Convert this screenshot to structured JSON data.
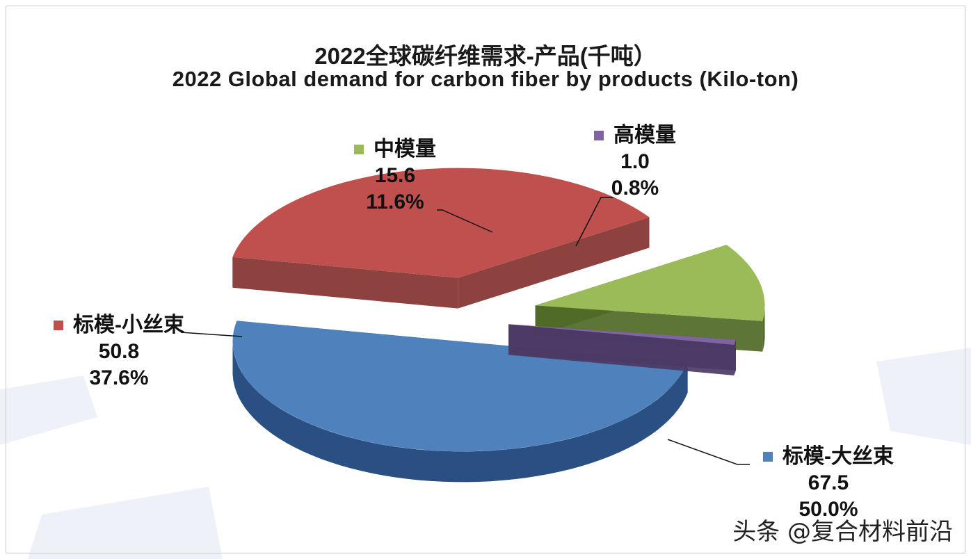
{
  "chart_data": {
    "type": "pie",
    "title": "2022全球碳纤维需求-产品(千吨）",
    "subtitle": "2022 Global demand for carbon fiber by products (Kilo-ton)",
    "slices": [
      {
        "key": "large",
        "label": "标模-大丝束",
        "value": 67.5,
        "value_text": "67.5",
        "percent": 50.0,
        "percent_text": "50.0%",
        "color": "#4f81bd",
        "side_color": "#2a4f82"
      },
      {
        "key": "small",
        "label": "标模-小丝束",
        "value": 50.8,
        "value_text": "50.8",
        "percent": 37.6,
        "percent_text": "37.6%",
        "color": "#c0504d",
        "side_color": "#843230"
      },
      {
        "key": "mid",
        "label": "中模量",
        "value": 15.6,
        "value_text": "15.6",
        "percent": 11.6,
        "percent_text": "11.6%",
        "color": "#9bbb59",
        "side_color": "#4f6a26"
      },
      {
        "key": "high",
        "label": "高模量",
        "value": 1.0,
        "value_text": "1.0",
        "percent": 0.8,
        "percent_text": "0.8%",
        "color": "#8064a2",
        "side_color": "#4c3a66"
      }
    ],
    "legend": "none",
    "exploded": true,
    "three_d": true
  },
  "watermark": "头条 @复合材料前沿"
}
